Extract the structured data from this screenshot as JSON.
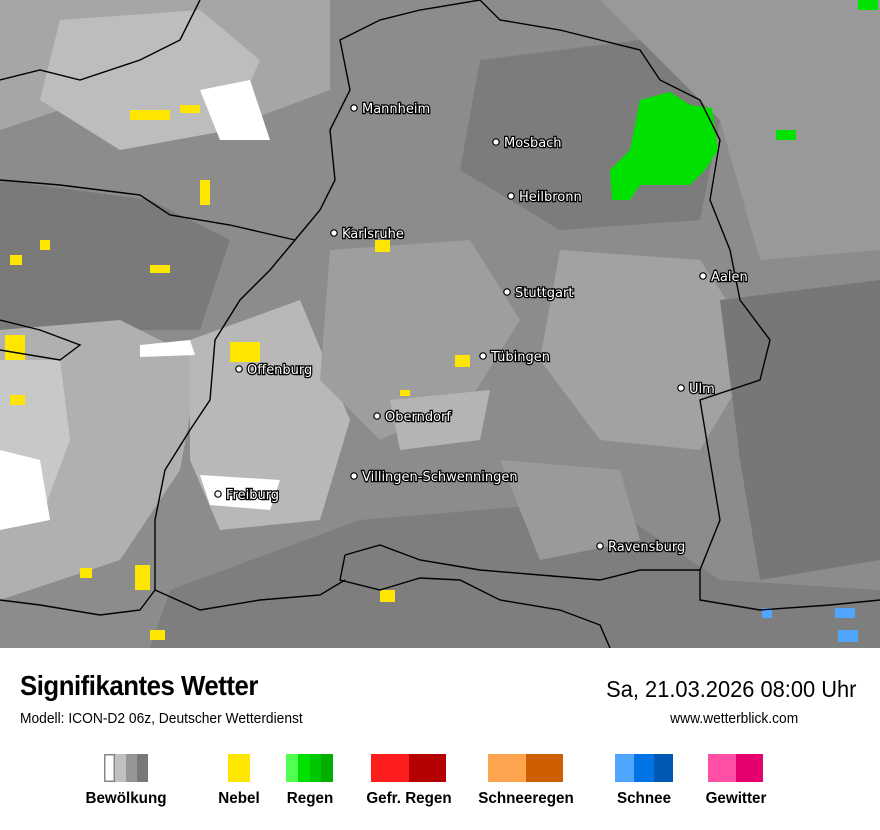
{
  "header": {
    "title": "Signifikantes Wetter",
    "subtitle": "Modell: ICON-D2 06z, Deutscher Wetterdienst",
    "datetime": "Sa, 21.03.2026 08:00 Uhr",
    "website": "www.wetterblick.com"
  },
  "map": {
    "background_color": "#8c8c8c",
    "cities": [
      {
        "name": "Mannheim"
      },
      {
        "name": "Mosbach"
      },
      {
        "name": "Heilbronn"
      },
      {
        "name": "Karlsruhe"
      },
      {
        "name": "Aalen"
      },
      {
        "name": "Stuttgart"
      },
      {
        "name": "Tübingen"
      },
      {
        "name": "Offenburg"
      },
      {
        "name": "Ulm"
      },
      {
        "name": "Oberndorf"
      },
      {
        "name": "Villingen-Schwenningen"
      },
      {
        "name": "Freiburg"
      },
      {
        "name": "Ravensburg"
      }
    ]
  },
  "legend": [
    {
      "label": "Bewölkung",
      "colors": [
        "#ffffff",
        "#c0c0c0",
        "#969696",
        "#787878"
      ]
    },
    {
      "label": "Nebel",
      "colors": [
        "#ffe600"
      ]
    },
    {
      "label": "Regen",
      "colors": [
        "#50ff50",
        "#00e100",
        "#00c800",
        "#00af00"
      ]
    },
    {
      "label": "Gefr. Regen",
      "colors": [
        "#ff1e1e",
        "#b40000"
      ]
    },
    {
      "label": "Schneeregen",
      "colors": [
        "#ffa550",
        "#cd5f00"
      ]
    },
    {
      "label": "Schnee",
      "colors": [
        "#50a5ff",
        "#0073e6",
        "#005ab4"
      ]
    },
    {
      "label": "Gewitter",
      "colors": [
        "#ff50a5",
        "#e6006e"
      ]
    }
  ]
}
